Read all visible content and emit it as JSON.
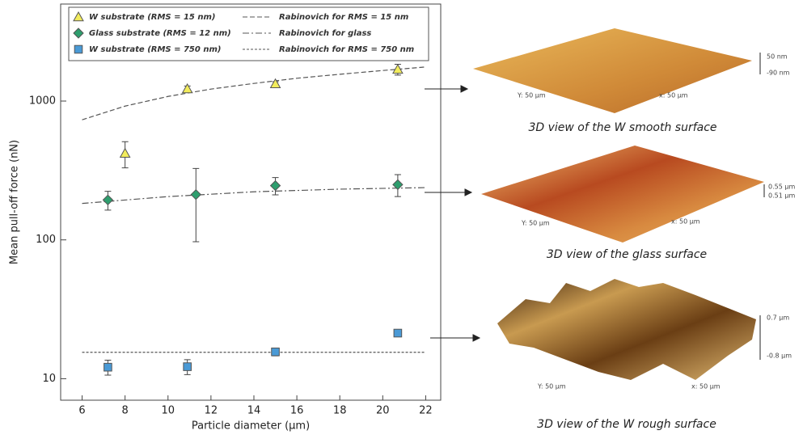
{
  "chart_data": {
    "type": "scatter",
    "xlabel": "Particle diameter (µm)",
    "ylabel": "Mean pull-off force (nN)",
    "xlim": [
      5,
      22.7
    ],
    "xticks": [
      6,
      8,
      10,
      12,
      14,
      16,
      18,
      20,
      22
    ],
    "ylim": [
      7,
      5000
    ],
    "yticks": [
      10,
      100,
      1000
    ],
    "log_y": true,
    "legend": "upper left",
    "series": [
      {
        "name": "W substrate (RMS = 15 nm)",
        "color": "#f2ec5c",
        "marker": "triangle",
        "x": [
          8,
          10.9,
          15,
          20.7
        ],
        "values": [
          420,
          1224,
          1330,
          1690
        ],
        "errors": [
          90,
          60,
          50,
          150
        ]
      },
      {
        "name": "Glass substrate (RMS = 12 nm)",
        "color": "#2e9e6e",
        "marker": "diamond",
        "x": [
          7.2,
          11.3,
          15,
          20.7
        ],
        "values": [
          194,
          212,
          246,
          250
        ],
        "errors": [
          30,
          115,
          35,
          45
        ]
      },
      {
        "name": "W substrate (RMS = 750 nm)",
        "color": "#4a9ad6",
        "marker": "square",
        "x": [
          7.2,
          10.9,
          15,
          20.7
        ],
        "values": [
          12.1,
          12.2,
          15.6,
          21.3
        ],
        "errors": [
          1.5,
          1.5,
          1,
          1
        ]
      }
    ],
    "lines": [
      {
        "name": "Rabinovich for RMS = 15 nm",
        "color": "#555555",
        "dash": "6 3",
        "x": [
          6,
          8,
          10,
          12,
          14,
          16,
          18,
          20,
          22
        ],
        "values": [
          733,
          920,
          1080,
          1220,
          1340,
          1460,
          1560,
          1660,
          1760
        ]
      },
      {
        "name": "Rabinovich for glass",
        "color": "#555555",
        "dash": "8 3 2 3",
        "x": [
          6,
          10,
          14,
          18,
          22
        ],
        "values": [
          183,
          205,
          222,
          232,
          238
        ]
      },
      {
        "name": "Rabinovich for RMS = 750 nm",
        "color": "#555555",
        "dash": "3 2",
        "x": [
          6,
          22
        ],
        "values": [
          15.5,
          15.5
        ]
      }
    ]
  },
  "surfaces": [
    {
      "caption": "3D view of the W smooth surface",
      "z_top": "50 nm",
      "z_bottom": "-90 nm",
      "y_label": "Y: 50 µm",
      "x_label": "x: 50 µm"
    },
    {
      "caption": "3D view of the glass surface",
      "z_top": "0.55 µm",
      "z_bottom": "0.51 µm",
      "y_label": "Y: 50 µm",
      "x_label": "x: 50 µm"
    },
    {
      "caption": "3D view of the W rough surface",
      "z_top": "0.7 µm",
      "z_bottom": "-0.8 µm",
      "y_label": "Y: 50 µm",
      "x_label": "x: 50 µm"
    }
  ]
}
